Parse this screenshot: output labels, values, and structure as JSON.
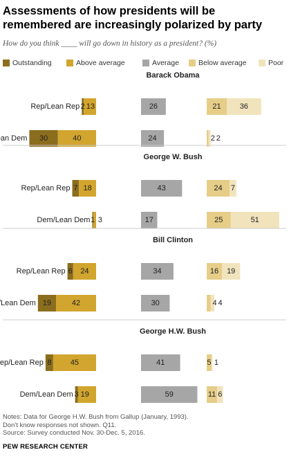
{
  "header": {
    "title": "Assessments of how presidents will be remembered are increasingly polarized by party",
    "subtitle": "How do you think ____ will go down in history as a president? (%)"
  },
  "legend": [
    {
      "label": "Outstanding",
      "color": "#8B6D1E"
    },
    {
      "label": "Above average",
      "color": "#D1A52E"
    },
    {
      "label": "Average",
      "color": "#A6A6A6"
    },
    {
      "label": "Below average",
      "color": "#E6CD88"
    },
    {
      "label": "Poor",
      "color": "#F1E3BC"
    }
  ],
  "chart_data": {
    "type": "bar",
    "orientation": "horizontal",
    "stacked": "diverging",
    "categories": [
      "Outstanding",
      "Above average",
      "Average",
      "Below average",
      "Poor"
    ],
    "colors": [
      "#8B6D1E",
      "#D1A52E",
      "#A6A6A6",
      "#E6CD88",
      "#F1E3BC"
    ],
    "groups": [
      {
        "president": "Barack Obama",
        "rows": [
          {
            "party": "Rep/Lean Rep",
            "values": [
              2,
              13,
              26,
              21,
              36
            ]
          },
          {
            "party": "Dem/Lean Dem",
            "values": [
              30,
              40,
              24,
              2,
              2
            ]
          }
        ]
      },
      {
        "president": "George W. Bush",
        "rows": [
          {
            "party": "Rep/Lean Rep",
            "values": [
              7,
              18,
              43,
              24,
              7
            ]
          },
          {
            "party": "Dem/Lean Dem",
            "values": [
              1,
              3,
              17,
              25,
              51
            ]
          }
        ]
      },
      {
        "president": "Bill Clinton",
        "rows": [
          {
            "party": "Rep/Lean Rep",
            "values": [
              6,
              24,
              34,
              16,
              19
            ]
          },
          {
            "party": "Dem/Lean Dem",
            "values": [
              19,
              42,
              30,
              4,
              4
            ]
          }
        ]
      },
      {
        "president": "George H.W. Bush",
        "rows": [
          {
            "party": "Rep/Lean Rep",
            "values": [
              8,
              45,
              41,
              5,
              1
            ]
          },
          {
            "party": "Dem/Lean Dem",
            "values": [
              3,
              19,
              59,
              11,
              6
            ]
          }
        ]
      }
    ]
  },
  "footer": {
    "note1": "Notes: Data for George H.W. Bush from Gallup (January, 1993).",
    "note2": "Don't know responses not shown. Q11.",
    "source": "Source: Survey conducted Nov. 30-Dec. 5, 2016.",
    "org": "PEW RESEARCH CENTER"
  }
}
